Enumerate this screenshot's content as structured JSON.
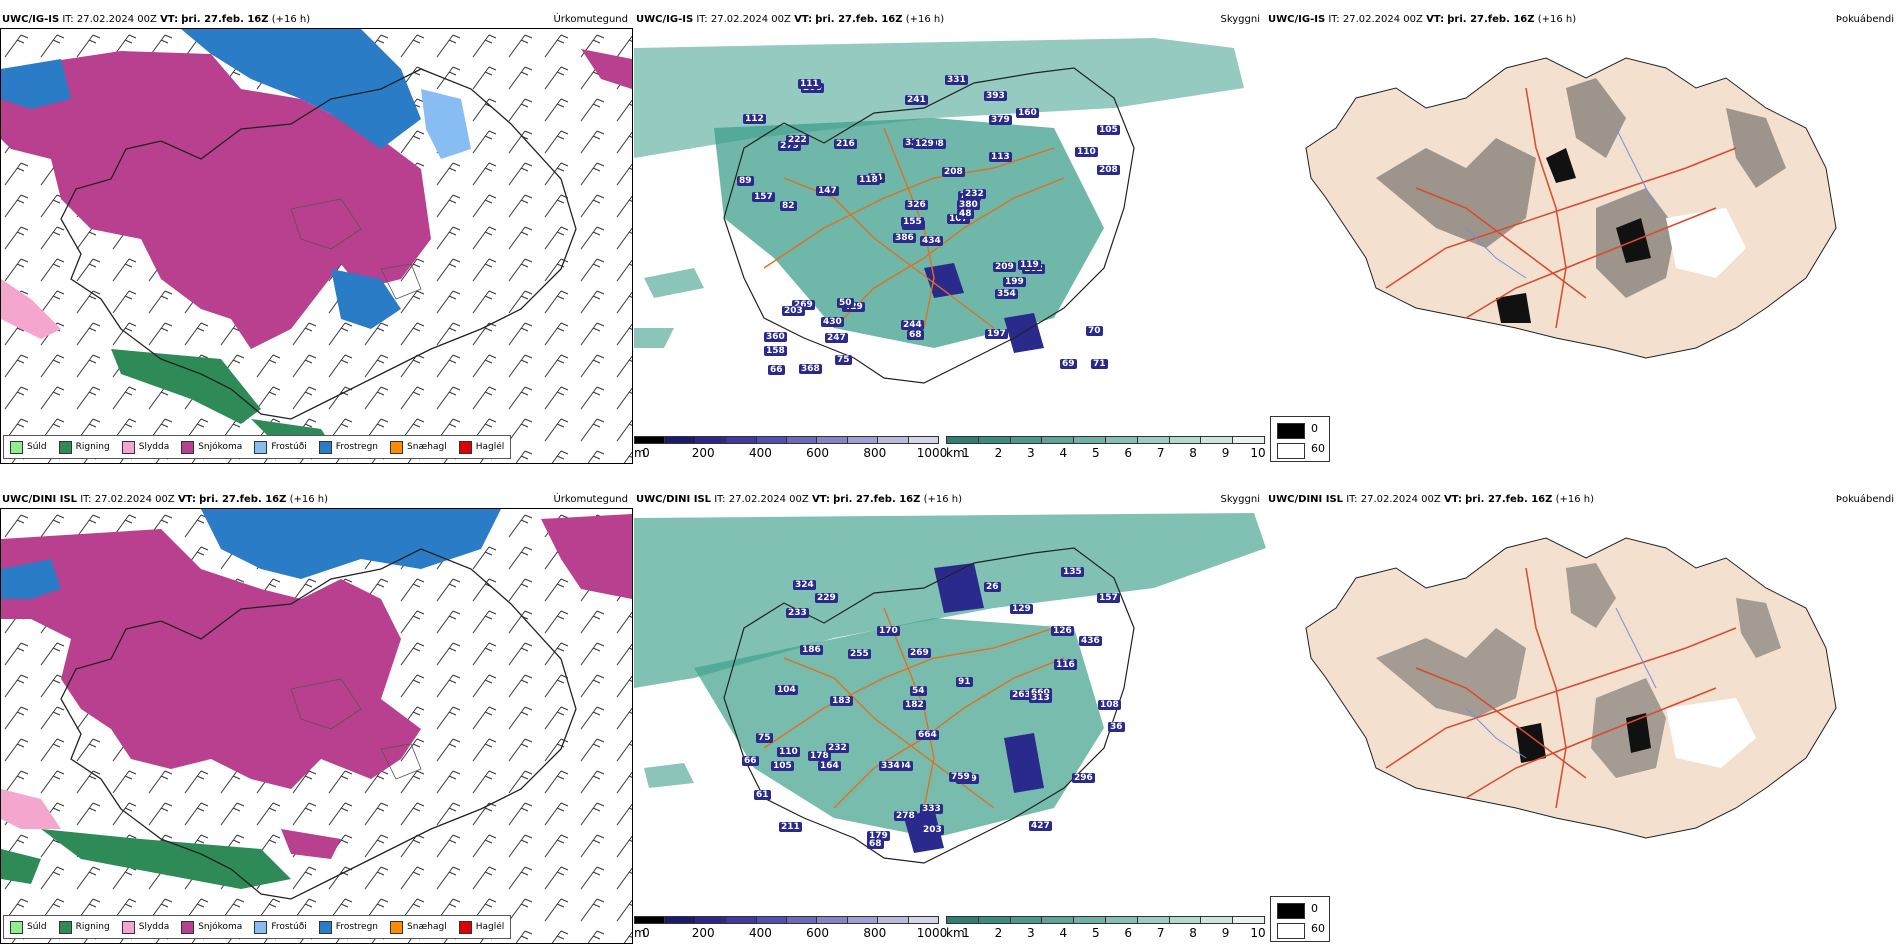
{
  "colors": {
    "sudl": "#90ee90",
    "rigning": "#2e8b57",
    "slydda": "#f4a6cf",
    "snjokoma": "#b8408f",
    "frostudi": "#87bdf2",
    "frostregn": "#2b7cc7",
    "snjaehagl": "#ff8c00",
    "haglel": "#e00000",
    "teal": "#3e9f8c",
    "coast": "#222222",
    "road": "#e07020",
    "fog_land": "#f3e0cf",
    "fog_road": "#d84a2a"
  },
  "rows": [
    {
      "model": "UWC/IG-IS",
      "it_label": "IT:",
      "it_value": "27.02.2024 00Z",
      "vt_label": "VT:",
      "vt_value": "þri. 27.feb. 16Z",
      "lead": "(+16 h)",
      "var_precip": "Úrkomutegund",
      "var_visibility": "Skyggni",
      "var_fog": "Þokuábendi",
      "cloud_labels": [
        "434",
        "279",
        "427",
        "360",
        "768",
        "429",
        "393",
        "208",
        "379",
        "107",
        "206",
        "71",
        "82",
        "105",
        "386",
        "113",
        "368",
        "335",
        "208",
        "269",
        "34",
        "158",
        "247",
        "129",
        "232",
        "162",
        "222",
        "241",
        "157",
        "209",
        "208",
        "155",
        "244",
        "326",
        "216",
        "160",
        "50",
        "69",
        "70",
        "119",
        "331",
        "118",
        "147",
        "354",
        "75",
        "89",
        "380",
        "66",
        "68",
        "48",
        "203",
        "110",
        "112",
        "199",
        "197",
        "430",
        "111"
      ]
    },
    {
      "model": "UWC/DINI ISL",
      "it_label": "IT:",
      "it_value": "27.02.2024 00Z",
      "vt_label": "VT:",
      "vt_value": "þri. 27.feb. 16Z",
      "lead": "(+16 h)",
      "var_precip": "Úrkomutegund",
      "var_visibility": "Skyggni",
      "var_fog": "Þokuábendi",
      "cloud_labels": [
        "263",
        "427",
        "660",
        "664",
        "333",
        "170",
        "182",
        "178",
        "104",
        "108",
        "164",
        "229",
        "179",
        "436",
        "211",
        "157",
        "189",
        "269",
        "104",
        "91",
        "759",
        "233",
        "232",
        "313",
        "334",
        "296",
        "278",
        "186",
        "135",
        "126",
        "176",
        "203",
        "68",
        "129",
        "110",
        "255",
        "324",
        "75",
        "66",
        "54",
        "26",
        "116",
        "36",
        "183",
        "105",
        "61"
      ]
    }
  ],
  "precip_legend": [
    {
      "label": "Súld",
      "color": "#90ee90"
    },
    {
      "label": "Rigning",
      "color": "#2e8b57"
    },
    {
      "label": "Slydda",
      "color": "#f4a6cf"
    },
    {
      "label": "Snjókoma",
      "color": "#b8408f"
    },
    {
      "label": "Frostúði",
      "color": "#87bdf2"
    },
    {
      "label": "Frostregn",
      "color": "#2b7cc7"
    },
    {
      "label": "Snæhagl",
      "color": "#ff8c00"
    },
    {
      "label": "Haglél",
      "color": "#e00000"
    }
  ],
  "cloud_scale": {
    "unit": "m",
    "ticks": [
      "0",
      "200",
      "400",
      "600",
      "800",
      "1000"
    ],
    "colors": [
      "#000000",
      "#1a1a6e",
      "#2a2a8c",
      "#3c3ca0",
      "#5050b0",
      "#6a6abd",
      "#8585c8",
      "#a0a0d4",
      "#babae0",
      "#d5d5ec"
    ]
  },
  "vis_scale": {
    "unit": "km",
    "ticks": [
      "1",
      "2",
      "3",
      "4",
      "5",
      "6",
      "7",
      "8",
      "9",
      "10"
    ],
    "colors": [
      "#2f7f73",
      "#3b8c80",
      "#4b988c",
      "#5ea598",
      "#72b2a5",
      "#87bfb3",
      "#9dccc1",
      "#b4d9cf",
      "#cce6de",
      "#e6f3ef"
    ]
  },
  "fog_legend": {
    "low": "0",
    "high": "60",
    "low_color": "#000000",
    "high_color": "#ffffff"
  }
}
